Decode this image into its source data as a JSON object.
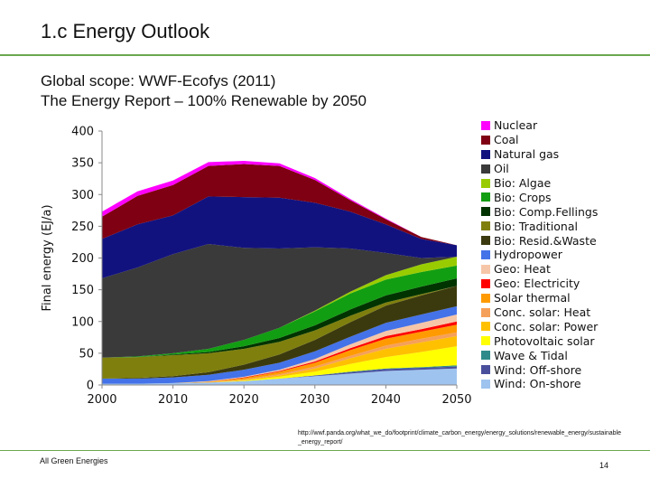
{
  "slide": {
    "title": "1.c Energy Outlook",
    "subtitle_line1": "Global scope: WWF-Ecofys (2011)",
    "subtitle_line2": "The Energy Report – 100% Renewable by 2050",
    "source": "http://wwf.panda.org/what_we_do/footprint/climate_carbon_energy/energy_solutions/renewable_energy/sustainable_energy_report/",
    "footer": "All Green Energies",
    "page_number": "14"
  },
  "chart_data": {
    "type": "area",
    "stacked": true,
    "x": [
      2000,
      2005,
      2010,
      2015,
      2020,
      2025,
      2030,
      2035,
      2040,
      2045,
      2050
    ],
    "xticks": [
      "2000",
      "2010",
      "2020",
      "2030",
      "2040",
      "2050"
    ],
    "ylabel": "Final energy (EJ/a)",
    "ylim": [
      0,
      400
    ],
    "yticks": [
      "0",
      "50",
      "100",
      "150",
      "200",
      "250",
      "300",
      "350",
      "400"
    ],
    "grid": false,
    "legend_position": "right",
    "series": [
      {
        "name": "Wind: On-shore",
        "color": "#9ec3ee",
        "values": [
          2,
          2,
          3,
          4,
          6,
          10,
          14,
          18,
          22,
          24,
          26
        ]
      },
      {
        "name": "Wind: Off-shore",
        "color": "#4a4f9c",
        "values": [
          0,
          0,
          0,
          0,
          0,
          0,
          1,
          2,
          3,
          3,
          3
        ]
      },
      {
        "name": "Wave & Tidal",
        "color": "#2e8a8a",
        "values": [
          0,
          0,
          0,
          0,
          0,
          0,
          0,
          1,
          1,
          1,
          2
        ]
      },
      {
        "name": "Photovoltaic solar",
        "color": "#ffff00",
        "values": [
          0,
          0,
          0,
          0,
          1,
          3,
          6,
          12,
          18,
          24,
          30
        ]
      },
      {
        "name": "Conc. solar: Power",
        "color": "#ffc000",
        "values": [
          0,
          0,
          0,
          0,
          1,
          2,
          5,
          9,
          13,
          15,
          16
        ]
      },
      {
        "name": "Conc. solar: Heat",
        "color": "#f5a05a",
        "values": [
          0,
          0,
          0,
          0,
          1,
          2,
          3,
          4,
          5,
          6,
          6
        ]
      },
      {
        "name": "Solar thermal",
        "color": "#ff9a00",
        "values": [
          0,
          0,
          0,
          1,
          2,
          4,
          6,
          9,
          11,
          11,
          12
        ]
      },
      {
        "name": "Geo: Electricity",
        "color": "#ff0000",
        "values": [
          0,
          0,
          0,
          0,
          1,
          1,
          2,
          3,
          4,
          4,
          5
        ]
      },
      {
        "name": "Geo: Heat",
        "color": "#f6c6a8",
        "values": [
          0,
          0,
          0,
          1,
          1,
          2,
          4,
          6,
          8,
          10,
          11
        ]
      },
      {
        "name": "Hydropower",
        "color": "#4472e8",
        "values": [
          8,
          8,
          9,
          10,
          11,
          11,
          12,
          12,
          13,
          13,
          13
        ]
      },
      {
        "name": "Bio: Resid.&Waste",
        "color": "#3b3a0e",
        "values": [
          0,
          1,
          2,
          4,
          8,
          13,
          18,
          23,
          27,
          30,
          32
        ]
      },
      {
        "name": "Bio: Traditional",
        "color": "#7f7f0e",
        "values": [
          33,
          33,
          33,
          30,
          25,
          20,
          15,
          10,
          5,
          2,
          0
        ]
      },
      {
        "name": "Bio: Comp.Fellings",
        "color": "#003300",
        "values": [
          0,
          0,
          1,
          2,
          4,
          6,
          8,
          10,
          11,
          12,
          12
        ]
      },
      {
        "name": "Bio: Crops",
        "color": "#129e12",
        "values": [
          0,
          1,
          2,
          5,
          10,
          16,
          22,
          25,
          25,
          23,
          20
        ]
      },
      {
        "name": "Bio: Algae",
        "color": "#99cc00",
        "values": [
          0,
          0,
          0,
          0,
          0,
          0,
          1,
          3,
          7,
          12,
          14
        ]
      },
      {
        "name": "Oil",
        "color": "#3a3a3a",
        "values": [
          125,
          140,
          156,
          165,
          145,
          125,
          100,
          68,
          35,
          10,
          0
        ]
      },
      {
        "name": "Natural gas",
        "color": "#12127f",
        "values": [
          62,
          68,
          61,
          75,
          80,
          80,
          70,
          58,
          45,
          30,
          18
        ]
      },
      {
        "name": "Coal",
        "color": "#7f0012",
        "values": [
          35,
          45,
          48,
          48,
          52,
          50,
          36,
          18,
          8,
          3,
          0
        ]
      },
      {
        "name": "Nuclear",
        "color": "#ff00ff",
        "values": [
          8,
          7,
          7,
          6,
          5,
          4,
          3,
          2,
          1,
          0,
          0
        ]
      }
    ],
    "legend": [
      "Nuclear",
      "Coal",
      "Natural gas",
      "Oil",
      "Bio: Algae",
      "Bio: Crops",
      "Bio: Comp.Fellings",
      "Bio: Traditional",
      "Bio: Resid.&Waste",
      "Hydropower",
      "Geo: Heat",
      "Geo: Electricity",
      "Solar thermal",
      "Conc. solar: Heat",
      "Conc. solar: Power",
      "Photovoltaic solar",
      "Wave & Tidal",
      "Wind: Off-shore",
      "Wind: On-shore"
    ]
  }
}
